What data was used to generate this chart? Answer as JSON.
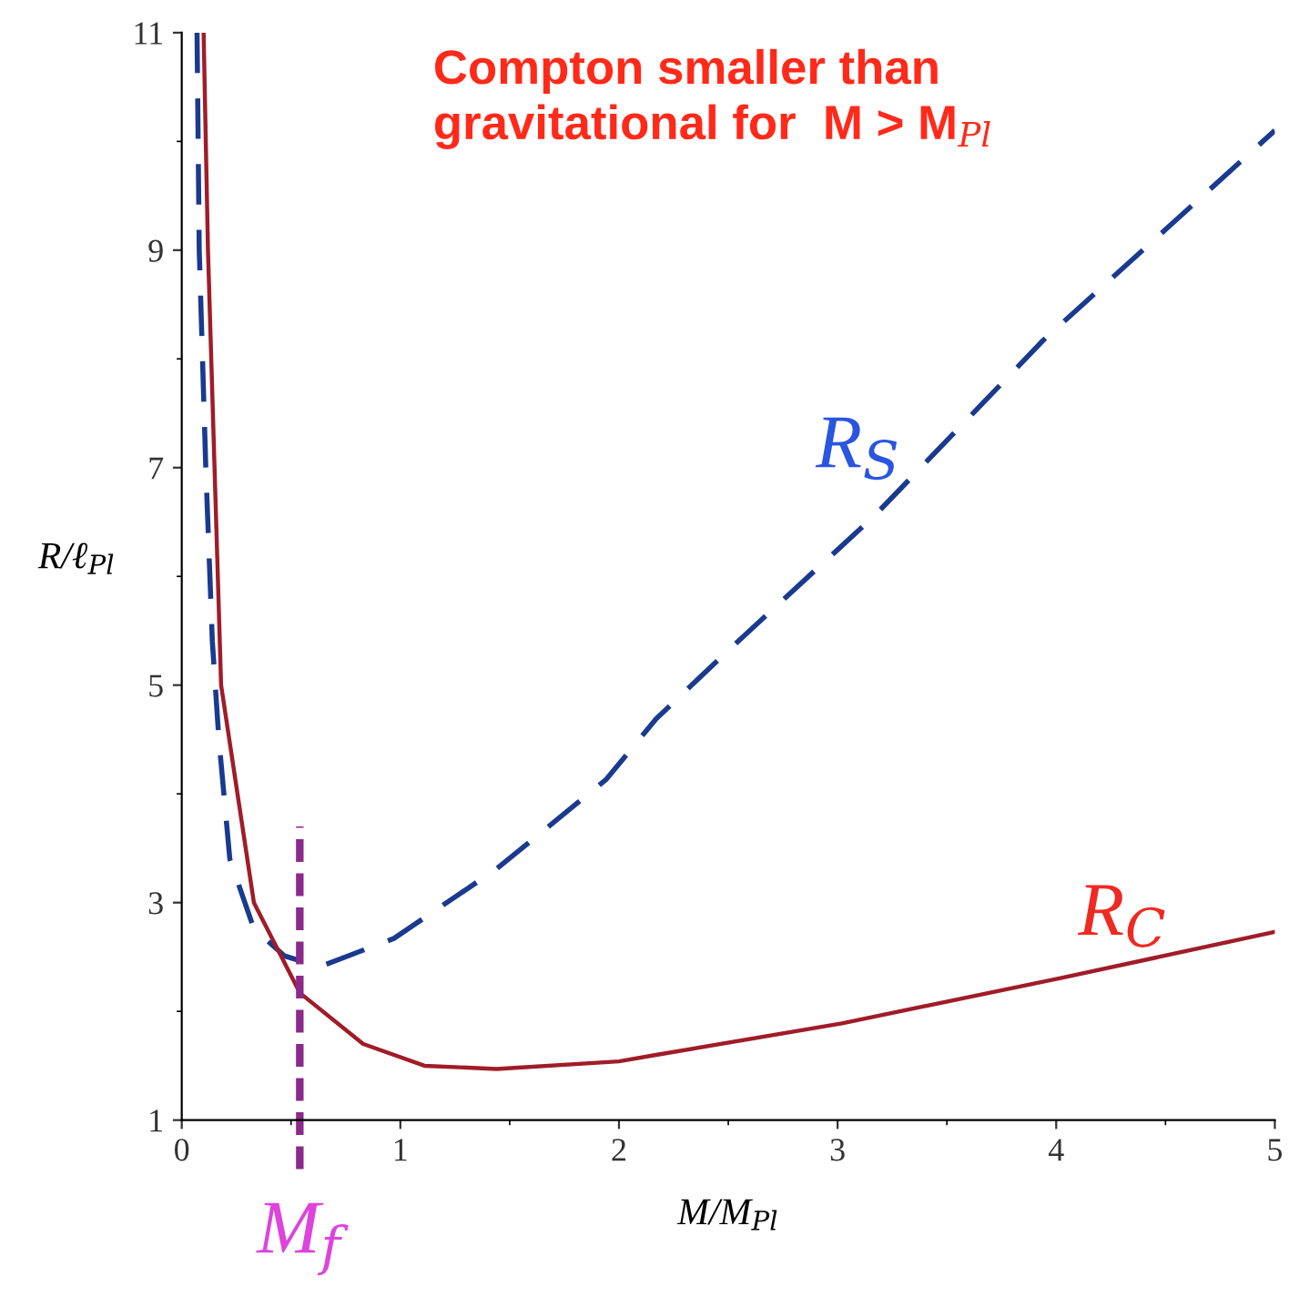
{
  "chart_data": {
    "type": "line",
    "title": "Compton smaller than\ngravitational for  M > M$_{Pl}$",
    "xlabel": "M/M$_{Pl}$",
    "ylabel": "R/ℓ$_{Pl}$",
    "xlim": [
      0,
      5
    ],
    "ylim": [
      1,
      11
    ],
    "xticks": [
      0,
      1,
      2,
      3,
      4,
      5
    ],
    "yticks": [
      1,
      3,
      5,
      7,
      9,
      11
    ],
    "grid": false,
    "legend": false,
    "series": [
      {
        "name": "R$_{S}$",
        "color": "#1a3a8f",
        "line_style": "dashed",
        "x": [
          0.07,
          0.08,
          0.11,
          0.14,
          0.17,
          0.22,
          0.33,
          0.47,
          0.63,
          0.97,
          1.44,
          1.94,
          2.17,
          2.5,
          3.17,
          3.94,
          5
        ],
        "values": [
          11,
          9,
          7,
          5.4,
          4.5,
          3.4,
          2.76,
          2.51,
          2.41,
          2.67,
          3.31,
          4.13,
          4.69,
          5.32,
          6.56,
          8.17,
          10.1
        ]
      },
      {
        "name": "R$_{C}$",
        "color": "#a01c28",
        "line_style": "solid",
        "x": [
          0.1,
          0.12,
          0.15,
          0.18,
          0.33,
          0.54,
          0.83,
          1.11,
          1.44,
          2,
          2.17,
          3.02,
          4.03,
          5
        ],
        "values": [
          11,
          9,
          7,
          5,
          3,
          2.17,
          1.7,
          1.5,
          1.47,
          1.54,
          1.6,
          1.89,
          2.31,
          2.73
        ]
      }
    ],
    "ref_lines": [
      {
        "axis": "x",
        "value": 0.54,
        "label": "M$_{f}$",
        "color": "#8b2a8b",
        "line_style": "dashed"
      }
    ]
  }
}
